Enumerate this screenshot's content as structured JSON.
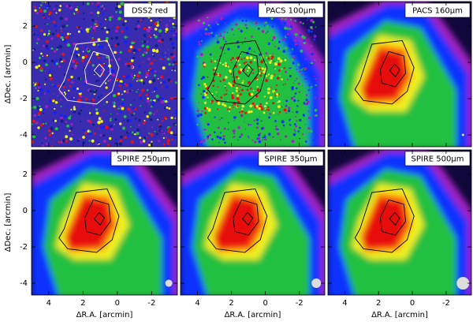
{
  "figure": {
    "panels": [
      {
        "label": "DSS2 red"
      },
      {
        "label": "PACS 100μm"
      },
      {
        "label": "PACS 160μm"
      },
      {
        "label": "SPIRE 250μm"
      },
      {
        "label": "SPIRE 350μm"
      },
      {
        "label": "SPIRE 500μm"
      }
    ],
    "xlabel": "ΔR.A. [arcmin]",
    "ylabel": "ΔDec. [arcmin]",
    "xlim": [
      5.0,
      -3.5
    ],
    "ylim": [
      -4.65,
      3.35
    ],
    "xticks": [
      4,
      2,
      0,
      -2
    ],
    "yticks": [
      2,
      0,
      -2,
      -4
    ]
  }
}
